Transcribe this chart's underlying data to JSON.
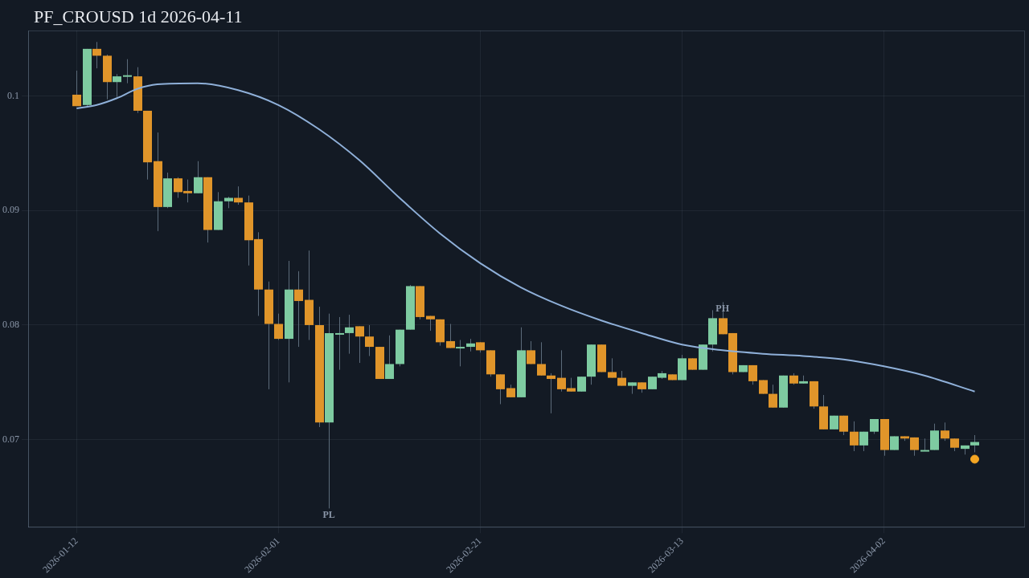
{
  "chart_data": {
    "type": "candlestick",
    "title": "PF_CROUSD 1d 2026-04-11",
    "x": [
      "2026-01-12",
      "2026-01-13",
      "2026-01-14",
      "2026-01-15",
      "2026-01-16",
      "2026-01-17",
      "2026-01-18",
      "2026-01-19",
      "2026-01-20",
      "2026-01-21",
      "2026-01-22",
      "2026-01-23",
      "2026-01-24",
      "2026-01-25",
      "2026-01-26",
      "2026-01-27",
      "2026-01-28",
      "2026-01-29",
      "2026-01-30",
      "2026-01-31",
      "2026-02-01",
      "2026-02-02",
      "2026-02-03",
      "2026-02-04",
      "2026-02-05",
      "2026-02-06",
      "2026-02-07",
      "2026-02-08",
      "2026-02-09",
      "2026-02-10",
      "2026-02-11",
      "2026-02-12",
      "2026-02-13",
      "2026-02-14",
      "2026-02-15",
      "2026-02-16",
      "2026-02-17",
      "2026-02-18",
      "2026-02-19",
      "2026-02-20",
      "2026-02-21",
      "2026-02-22",
      "2026-02-23",
      "2026-02-24",
      "2026-02-25",
      "2026-02-26",
      "2026-02-27",
      "2026-02-28",
      "2026-03-01",
      "2026-03-02",
      "2026-03-03",
      "2026-03-04",
      "2026-03-05",
      "2026-03-06",
      "2026-03-07",
      "2026-03-08",
      "2026-03-09",
      "2026-03-10",
      "2026-03-11",
      "2026-03-12",
      "2026-03-13",
      "2026-03-14",
      "2026-03-15",
      "2026-03-16",
      "2026-03-17",
      "2026-03-18",
      "2026-03-19",
      "2026-03-20",
      "2026-03-21",
      "2026-03-22",
      "2026-03-23",
      "2026-03-24",
      "2026-03-25",
      "2026-03-26",
      "2026-03-27",
      "2026-03-28",
      "2026-03-29",
      "2026-03-30",
      "2026-03-31",
      "2026-04-01",
      "2026-04-02",
      "2026-04-03",
      "2026-04-04",
      "2026-04-05",
      "2026-04-06",
      "2026-04-07",
      "2026-04-08",
      "2026-04-09",
      "2026-04-10",
      "2026-04-11"
    ],
    "ohlc": [
      [
        0.1001,
        0.1022,
        0.0991,
        0.0991
      ],
      [
        0.0992,
        0.1041,
        0.0991,
        0.1041
      ],
      [
        0.1041,
        0.1047,
        0.1024,
        0.1035
      ],
      [
        0.1035,
        0.1036,
        0.0997,
        0.1012
      ],
      [
        0.1012,
        0.1019,
        0.0999,
        0.1017
      ],
      [
        0.1017,
        0.1032,
        0.1011,
        0.1018
      ],
      [
        0.1017,
        0.1025,
        0.0985,
        0.0987
      ],
      [
        0.0987,
        0.0987,
        0.0927,
        0.0942
      ],
      [
        0.0943,
        0.0968,
        0.0882,
        0.0903
      ],
      [
        0.0903,
        0.0933,
        0.0902,
        0.0928
      ],
      [
        0.0928,
        0.0929,
        0.0911,
        0.0916
      ],
      [
        0.0917,
        0.0927,
        0.0907,
        0.0915
      ],
      [
        0.0915,
        0.0943,
        0.0915,
        0.0929
      ],
      [
        0.0929,
        0.0929,
        0.0872,
        0.0883
      ],
      [
        0.0883,
        0.0916,
        0.0883,
        0.0908
      ],
      [
        0.0908,
        0.0912,
        0.0902,
        0.0911
      ],
      [
        0.0911,
        0.0921,
        0.0905,
        0.0907
      ],
      [
        0.0907,
        0.0913,
        0.0852,
        0.0874
      ],
      [
        0.0875,
        0.0881,
        0.0808,
        0.0831
      ],
      [
        0.0831,
        0.0838,
        0.0744,
        0.0801
      ],
      [
        0.0801,
        0.081,
        0.0787,
        0.0788
      ],
      [
        0.0788,
        0.0856,
        0.075,
        0.0831
      ],
      [
        0.0831,
        0.0847,
        0.0781,
        0.0821
      ],
      [
        0.0822,
        0.0865,
        0.0787,
        0.08
      ],
      [
        0.08,
        0.0816,
        0.0711,
        0.0715
      ],
      [
        0.0715,
        0.081,
        0.064,
        0.0793
      ],
      [
        0.0793,
        0.0807,
        0.0761,
        0.0793
      ],
      [
        0.0793,
        0.0809,
        0.0775,
        0.0798
      ],
      [
        0.0799,
        0.0799,
        0.0767,
        0.079
      ],
      [
        0.079,
        0.08,
        0.0773,
        0.0781
      ],
      [
        0.0781,
        0.0781,
        0.0753,
        0.0753
      ],
      [
        0.0753,
        0.0791,
        0.0753,
        0.0766
      ],
      [
        0.0766,
        0.0796,
        0.0764,
        0.0796
      ],
      [
        0.0796,
        0.0835,
        0.0796,
        0.0834
      ],
      [
        0.0834,
        0.0834,
        0.0805,
        0.0807
      ],
      [
        0.0808,
        0.0808,
        0.0795,
        0.0805
      ],
      [
        0.0805,
        0.0805,
        0.0782,
        0.0785
      ],
      [
        0.0786,
        0.0801,
        0.078,
        0.078
      ],
      [
        0.0781,
        0.0787,
        0.0764,
        0.0781
      ],
      [
        0.0781,
        0.0788,
        0.0777,
        0.0784
      ],
      [
        0.0785,
        0.0785,
        0.0776,
        0.0778
      ],
      [
        0.0778,
        0.0778,
        0.0755,
        0.0757
      ],
      [
        0.0757,
        0.0757,
        0.0731,
        0.0744
      ],
      [
        0.0745,
        0.0748,
        0.0737,
        0.0737
      ],
      [
        0.0737,
        0.0798,
        0.0737,
        0.0778
      ],
      [
        0.0778,
        0.0786,
        0.0766,
        0.0766
      ],
      [
        0.0766,
        0.0785,
        0.0756,
        0.0756
      ],
      [
        0.0756,
        0.0758,
        0.0723,
        0.0753
      ],
      [
        0.0754,
        0.0778,
        0.0742,
        0.0744
      ],
      [
        0.0745,
        0.0754,
        0.0742,
        0.0742
      ],
      [
        0.0742,
        0.0755,
        0.0742,
        0.0755
      ],
      [
        0.0755,
        0.0783,
        0.0748,
        0.0783
      ],
      [
        0.0783,
        0.0783,
        0.0759,
        0.0759
      ],
      [
        0.0759,
        0.0771,
        0.0754,
        0.0754
      ],
      [
        0.0754,
        0.076,
        0.0747,
        0.0747
      ],
      [
        0.0747,
        0.075,
        0.074,
        0.075
      ],
      [
        0.075,
        0.075,
        0.0741,
        0.0744
      ],
      [
        0.0744,
        0.0755,
        0.0744,
        0.0755
      ],
      [
        0.0754,
        0.076,
        0.0753,
        0.0758
      ],
      [
        0.0757,
        0.0757,
        0.0752,
        0.0752
      ],
      [
        0.0752,
        0.0774,
        0.0752,
        0.0771
      ],
      [
        0.0771,
        0.0771,
        0.0761,
        0.0761
      ],
      [
        0.0761,
        0.0783,
        0.0761,
        0.0783
      ],
      [
        0.0783,
        0.0813,
        0.0777,
        0.0806
      ],
      [
        0.0806,
        0.082,
        0.0792,
        0.0792
      ],
      [
        0.0793,
        0.0793,
        0.0757,
        0.0759
      ],
      [
        0.0759,
        0.0765,
        0.0759,
        0.0765
      ],
      [
        0.0765,
        0.0765,
        0.0748,
        0.0751
      ],
      [
        0.0752,
        0.0752,
        0.074,
        0.074
      ],
      [
        0.074,
        0.0748,
        0.0728,
        0.0728
      ],
      [
        0.0728,
        0.0756,
        0.0728,
        0.0756
      ],
      [
        0.0756,
        0.0758,
        0.0748,
        0.0749
      ],
      [
        0.0749,
        0.0756,
        0.0749,
        0.0751
      ],
      [
        0.0751,
        0.0751,
        0.0727,
        0.0729
      ],
      [
        0.0729,
        0.0739,
        0.0709,
        0.0709
      ],
      [
        0.0709,
        0.0721,
        0.0709,
        0.0721
      ],
      [
        0.0721,
        0.0721,
        0.0704,
        0.0707
      ],
      [
        0.0707,
        0.0716,
        0.069,
        0.0695
      ],
      [
        0.0695,
        0.0707,
        0.069,
        0.0707
      ],
      [
        0.0707,
        0.0718,
        0.0705,
        0.0718
      ],
      [
        0.0718,
        0.0718,
        0.0686,
        0.0691
      ],
      [
        0.0691,
        0.0703,
        0.0691,
        0.0703
      ],
      [
        0.0703,
        0.0703,
        0.0699,
        0.0701
      ],
      [
        0.0702,
        0.0702,
        0.0686,
        0.0691
      ],
      [
        0.069,
        0.0701,
        0.069,
        0.0691
      ],
      [
        0.0691,
        0.0714,
        0.0691,
        0.0708
      ],
      [
        0.0708,
        0.0715,
        0.0699,
        0.0701
      ],
      [
        0.0701,
        0.0701,
        0.069,
        0.0693
      ],
      [
        0.0692,
        0.0695,
        0.0687,
        0.0695
      ],
      [
        0.0695,
        0.0704,
        0.0689,
        0.0698
      ]
    ],
    "colors": [
      "#e0952a",
      "#7ecba1",
      "#e0952a",
      "#e0952a",
      "#7ecba1",
      "#7ecba1",
      "#e0952a",
      "#e0952a",
      "#e0952a",
      "#7ecba1",
      "#e0952a",
      "#e0952a",
      "#7ecba1",
      "#e0952a",
      "#7ecba1",
      "#7ecba1",
      "#e0952a",
      "#e0952a",
      "#e0952a",
      "#e0952a",
      "#e0952a",
      "#7ecba1",
      "#e0952a",
      "#e0952a",
      "#e0952a",
      "#7ecba1",
      "#7ecba1",
      "#7ecba1",
      "#e0952a",
      "#e0952a",
      "#e0952a",
      "#7ecba1",
      "#7ecba1",
      "#7ecba1",
      "#e0952a",
      "#e0952a",
      "#e0952a",
      "#e0952a",
      "#7ecba1",
      "#7ecba1",
      "#e0952a",
      "#e0952a",
      "#e0952a",
      "#e0952a",
      "#7ecba1",
      "#e0952a",
      "#e0952a",
      "#e0952a",
      "#e0952a",
      "#e0952a",
      "#7ecba1",
      "#7ecba1",
      "#e0952a",
      "#e0952a",
      "#e0952a",
      "#7ecba1",
      "#e0952a",
      "#7ecba1",
      "#7ecba1",
      "#e0952a",
      "#7ecba1",
      "#e0952a",
      "#7ecba1",
      "#7ecba1",
      "#e0952a",
      "#e0952a",
      "#7ecba1",
      "#e0952a",
      "#e0952a",
      "#e0952a",
      "#7ecba1",
      "#e0952a",
      "#7ecba1",
      "#e0952a",
      "#e0952a",
      "#7ecba1",
      "#e0952a",
      "#e0952a",
      "#7ecba1",
      "#7ecba1",
      "#e0952a",
      "#7ecba1",
      "#e0952a",
      "#e0952a",
      "#7ecba1",
      "#7ecba1",
      "#e0952a",
      "#e0952a",
      "#7ecba1",
      "#7ecba1"
    ],
    "series": [
      {
        "type": "line",
        "color": "#8fb0d9",
        "x": [
          "2026-01-12",
          "2026-01-14",
          "2026-01-16",
          "2026-01-18",
          "2026-01-20",
          "2026-01-24",
          "2026-01-28",
          "2026-02-01",
          "2026-02-05",
          "2026-02-09",
          "2026-02-13",
          "2026-02-17",
          "2026-02-21",
          "2026-02-25",
          "2026-03-01",
          "2026-03-05",
          "2026-03-09",
          "2026-03-13",
          "2026-03-17",
          "2026-03-21",
          "2026-03-25",
          "2026-03-29",
          "2026-04-02",
          "2026-04-06",
          "2026-04-11"
        ],
        "values": [
          0.0989,
          0.0992,
          0.0998,
          0.1006,
          0.101,
          0.1011,
          0.1005,
          0.0992,
          0.0971,
          0.0944,
          0.0911,
          0.088,
          0.0854,
          0.0833,
          0.0817,
          0.0804,
          0.0793,
          0.0783,
          0.0778,
          0.0775,
          0.0773,
          0.077,
          0.0764,
          0.0756,
          0.0742
        ]
      },
      {
        "type": "scatter",
        "color": "#f5a623",
        "x": [
          "2026-04-11"
        ],
        "values": [
          0.0683
        ]
      }
    ],
    "annotations": [
      {
        "text": "PH",
        "x": "2026-03-17",
        "y": 0.082
      },
      {
        "text": "PL",
        "x": "2026-02-06",
        "y": 0.064
      }
    ],
    "xlim": [
      "2026-01-07T04:48",
      "2026-04-15T21:36"
    ],
    "xticks": [
      "2026-01-12",
      "2026-02-01",
      "2026-02-21",
      "2026-03-13",
      "2026-04-02"
    ],
    "ylim": [
      0.0624,
      0.1057
    ],
    "yticks": [
      0.07,
      0.08,
      0.09,
      0.1
    ],
    "grid": true
  }
}
